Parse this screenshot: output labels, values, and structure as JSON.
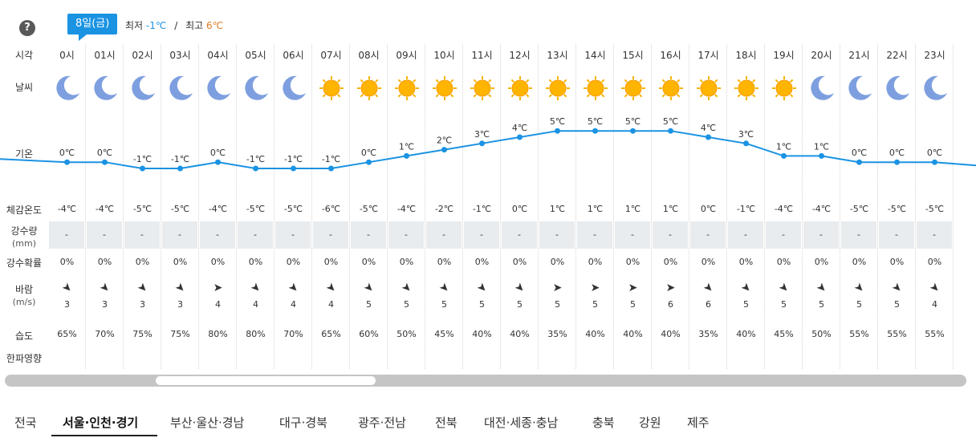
{
  "help_label": "?",
  "date_badge": "8일(금)",
  "min_label": "최저",
  "min_value": "-1℃",
  "slash": "/",
  "max_label": "최고",
  "max_value": "6℃",
  "row_labels": {
    "hour": "시각",
    "weather": "날씨",
    "temp": "기온",
    "feel": "체감온도",
    "rain": "강수량",
    "rain_unit": "(mm)",
    "prob": "강수확률",
    "wind": "바람",
    "wind_unit": "(m/s)",
    "humid": "습도",
    "cold": "한파영향"
  },
  "colors": {
    "accent": "#1a93e3",
    "max_temp": "#e07a1f",
    "rain_cell": "#e9ecee"
  },
  "hours": [
    {
      "hour": "0시",
      "icon": "moon-icon",
      "temp": "0℃",
      "t": 0,
      "feel": "-4℃",
      "rain": "-",
      "prob": "0%",
      "wind": "➤",
      "wind_dir": "south-east",
      "speed": "3",
      "humid": "65%"
    },
    {
      "hour": "01시",
      "icon": "moon-icon",
      "temp": "0℃",
      "t": 0,
      "feel": "-4℃",
      "rain": "-",
      "prob": "0%",
      "wind": "➤",
      "wind_dir": "south-east",
      "speed": "3",
      "humid": "70%"
    },
    {
      "hour": "02시",
      "icon": "moon-icon",
      "temp": "-1℃",
      "t": -1,
      "feel": "-5℃",
      "rain": "-",
      "prob": "0%",
      "wind": "➤",
      "wind_dir": "south-east",
      "speed": "3",
      "humid": "75%"
    },
    {
      "hour": "03시",
      "icon": "moon-icon",
      "temp": "-1℃",
      "t": -1,
      "feel": "-5℃",
      "rain": "-",
      "prob": "0%",
      "wind": "➤",
      "wind_dir": "south-east",
      "speed": "3",
      "humid": "75%"
    },
    {
      "hour": "04시",
      "icon": "moon-icon",
      "temp": "0℃",
      "t": 0,
      "feel": "-4℃",
      "rain": "-",
      "prob": "0%",
      "wind": "➤",
      "wind_dir": "east",
      "speed": "4",
      "humid": "80%"
    },
    {
      "hour": "05시",
      "icon": "moon-icon",
      "temp": "-1℃",
      "t": -1,
      "feel": "-5℃",
      "rain": "-",
      "prob": "0%",
      "wind": "➤",
      "wind_dir": "south-east",
      "speed": "4",
      "humid": "80%"
    },
    {
      "hour": "06시",
      "icon": "moon-icon",
      "temp": "-1℃",
      "t": -1,
      "feel": "-5℃",
      "rain": "-",
      "prob": "0%",
      "wind": "➤",
      "wind_dir": "south-east",
      "speed": "4",
      "humid": "70%"
    },
    {
      "hour": "07시",
      "icon": "sun-icon",
      "temp": "-1℃",
      "t": -1,
      "feel": "-6℃",
      "rain": "-",
      "prob": "0%",
      "wind": "➤",
      "wind_dir": "south-east",
      "speed": "4",
      "humid": "65%"
    },
    {
      "hour": "08시",
      "icon": "sun-icon",
      "temp": "0℃",
      "t": 0,
      "feel": "-5℃",
      "rain": "-",
      "prob": "0%",
      "wind": "➤",
      "wind_dir": "south-east",
      "speed": "5",
      "humid": "60%"
    },
    {
      "hour": "09시",
      "icon": "sun-icon",
      "temp": "1℃",
      "t": 1,
      "feel": "-4℃",
      "rain": "-",
      "prob": "0%",
      "wind": "➤",
      "wind_dir": "south-east",
      "speed": "5",
      "humid": "50%"
    },
    {
      "hour": "10시",
      "icon": "sun-icon",
      "temp": "2℃",
      "t": 2,
      "feel": "-2℃",
      "rain": "-",
      "prob": "0%",
      "wind": "➤",
      "wind_dir": "south-east",
      "speed": "5",
      "humid": "45%"
    },
    {
      "hour": "11시",
      "icon": "sun-icon",
      "temp": "3℃",
      "t": 3,
      "feel": "-1℃",
      "rain": "-",
      "prob": "0%",
      "wind": "➤",
      "wind_dir": "south-east",
      "speed": "5",
      "humid": "40%"
    },
    {
      "hour": "12시",
      "icon": "sun-icon",
      "temp": "4℃",
      "t": 4,
      "feel": "0℃",
      "rain": "-",
      "prob": "0%",
      "wind": "➤",
      "wind_dir": "south-east",
      "speed": "5",
      "humid": "40%"
    },
    {
      "hour": "13시",
      "icon": "sun-icon",
      "temp": "5℃",
      "t": 5,
      "feel": "1℃",
      "rain": "-",
      "prob": "0%",
      "wind": "➤",
      "wind_dir": "east",
      "speed": "5",
      "humid": "35%"
    },
    {
      "hour": "14시",
      "icon": "sun-icon",
      "temp": "5℃",
      "t": 5,
      "feel": "1℃",
      "rain": "-",
      "prob": "0%",
      "wind": "➤",
      "wind_dir": "east",
      "speed": "5",
      "humid": "40%"
    },
    {
      "hour": "15시",
      "icon": "sun-icon",
      "temp": "5℃",
      "t": 5,
      "feel": "1℃",
      "rain": "-",
      "prob": "0%",
      "wind": "➤",
      "wind_dir": "east",
      "speed": "5",
      "humid": "40%"
    },
    {
      "hour": "16시",
      "icon": "sun-icon",
      "temp": "5℃",
      "t": 5,
      "feel": "1℃",
      "rain": "-",
      "prob": "0%",
      "wind": "➤",
      "wind_dir": "east",
      "speed": "6",
      "humid": "40%"
    },
    {
      "hour": "17시",
      "icon": "sun-icon",
      "temp": "4℃",
      "t": 4,
      "feel": "0℃",
      "rain": "-",
      "prob": "0%",
      "wind": "➤",
      "wind_dir": "south-east",
      "speed": "6",
      "humid": "35%"
    },
    {
      "hour": "18시",
      "icon": "sun-icon",
      "temp": "3℃",
      "t": 3,
      "feel": "-1℃",
      "rain": "-",
      "prob": "0%",
      "wind": "➤",
      "wind_dir": "south-east",
      "speed": "5",
      "humid": "40%"
    },
    {
      "hour": "19시",
      "icon": "sun-icon",
      "temp": "1℃",
      "t": 1,
      "feel": "-4℃",
      "rain": "-",
      "prob": "0%",
      "wind": "➤",
      "wind_dir": "south-east",
      "speed": "5",
      "humid": "45%"
    },
    {
      "hour": "20시",
      "icon": "moon-icon",
      "temp": "1℃",
      "t": 1,
      "feel": "-4℃",
      "rain": "-",
      "prob": "0%",
      "wind": "➤",
      "wind_dir": "south-east",
      "speed": "5",
      "humid": "50%"
    },
    {
      "hour": "21시",
      "icon": "moon-icon",
      "temp": "0℃",
      "t": 0,
      "feel": "-5℃",
      "rain": "-",
      "prob": "0%",
      "wind": "➤",
      "wind_dir": "south-east",
      "speed": "5",
      "humid": "55%"
    },
    {
      "hour": "22시",
      "icon": "moon-icon",
      "temp": "0℃",
      "t": 0,
      "feel": "-5℃",
      "rain": "-",
      "prob": "0%",
      "wind": "➤",
      "wind_dir": "south-east",
      "speed": "5",
      "humid": "55%"
    },
    {
      "hour": "23시",
      "icon": "moon-icon",
      "temp": "0℃",
      "t": 0,
      "feel": "-5℃",
      "rain": "-",
      "prob": "0%",
      "wind": "➤",
      "wind_dir": "south-east",
      "speed": "4",
      "humid": "55%"
    }
  ],
  "regions": [
    {
      "label": "전국",
      "active": false
    },
    {
      "label": "서울·인천·경기",
      "active": true
    },
    {
      "label": "부산·울산·경남",
      "active": false
    },
    {
      "label": "대구·경북",
      "active": false
    },
    {
      "label": "광주·전남",
      "active": false
    },
    {
      "label": "전북",
      "active": false
    },
    {
      "label": "대전·세종·충남",
      "active": false
    },
    {
      "label": "충북",
      "active": false
    },
    {
      "label": "강원",
      "active": false
    },
    {
      "label": "제주",
      "active": false
    }
  ]
}
